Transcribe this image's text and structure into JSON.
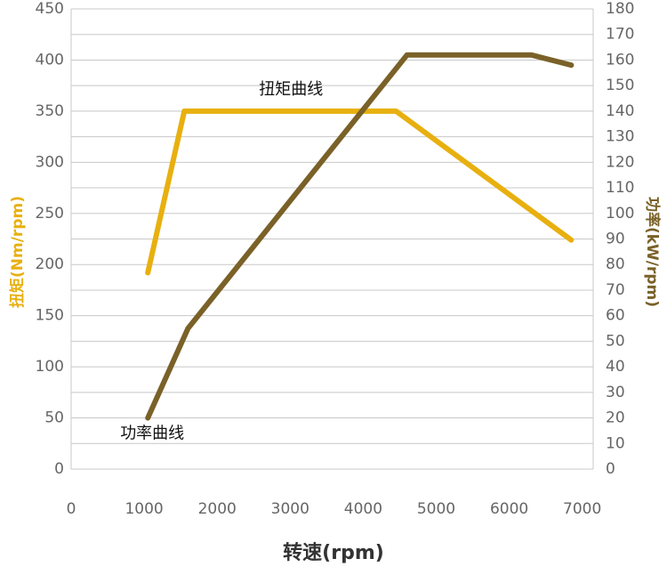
{
  "chart_data": {
    "type": "line",
    "x_label": "转速(rpm)",
    "y_label": "扭矩(Nm/rpm)",
    "y2_label": "功率(kW/rpm)",
    "xlim": [
      0,
      7150
    ],
    "xticks": [
      0,
      1000,
      2000,
      3000,
      4000,
      5000,
      6000,
      7000
    ],
    "ylim": [
      0,
      450
    ],
    "yticks": [
      0,
      50,
      100,
      150,
      200,
      250,
      300,
      350,
      400,
      450
    ],
    "y2lim": [
      0,
      180
    ],
    "y2ticks": [
      0,
      10,
      20,
      30,
      40,
      50,
      60,
      70,
      80,
      90,
      100,
      110,
      120,
      130,
      140,
      150,
      160,
      170,
      180
    ],
    "grid": true,
    "series": [
      {
        "name": "扭矩曲线",
        "color": "#e8b00f",
        "x": [
          1050,
          1550,
          4450,
          6850
        ],
        "values": [
          192,
          350,
          350,
          224
        ]
      },
      {
        "name": "功率曲线",
        "color": "#7a6128",
        "axis": "y2",
        "x": [
          1050,
          1600,
          4600,
          6300,
          6850
        ],
        "values": [
          20,
          55,
          162,
          162,
          158
        ]
      }
    ]
  }
}
